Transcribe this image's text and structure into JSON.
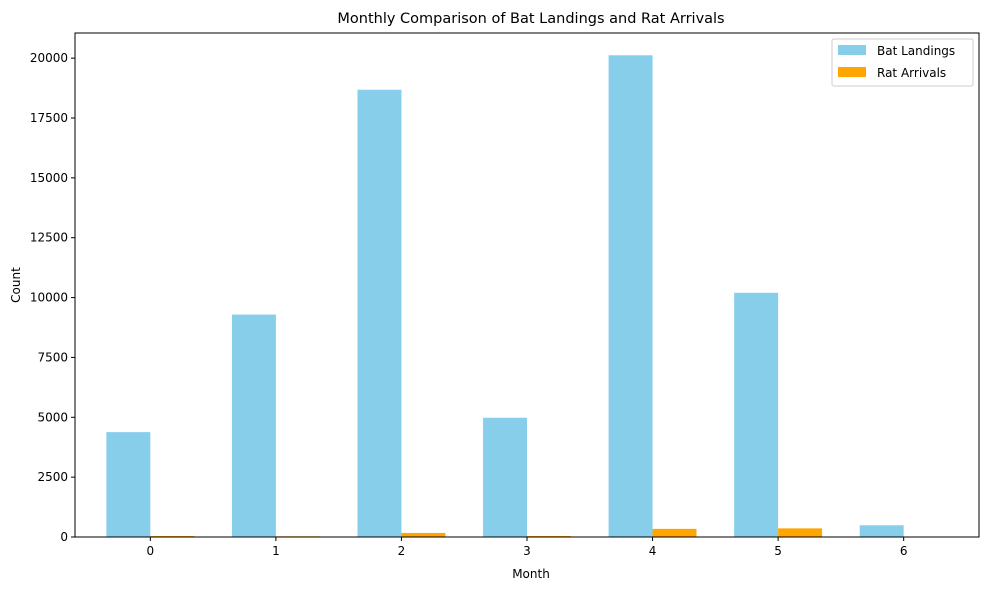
{
  "chart_data": {
    "type": "bar",
    "title": "Monthly Comparison of Bat Landings and Rat Arrivals",
    "xlabel": "Month",
    "ylabel": "Count",
    "categories": [
      "0",
      "1",
      "2",
      "3",
      "4",
      "5",
      "6"
    ],
    "ylim": [
      0,
      21050
    ],
    "yticks": [
      0,
      2500,
      5000,
      7500,
      10000,
      12500,
      15000,
      17500,
      20000
    ],
    "legend_position": "top-right",
    "grid": false,
    "series": [
      {
        "name": "Bat Landings",
        "color": "#87CEEB",
        "values": [
          4380,
          9290,
          18680,
          4980,
          20120,
          10200,
          490
        ]
      },
      {
        "name": "Rat Arrivals",
        "color": "#FFA500",
        "values": [
          40,
          30,
          170,
          40,
          340,
          360,
          0
        ]
      }
    ]
  }
}
